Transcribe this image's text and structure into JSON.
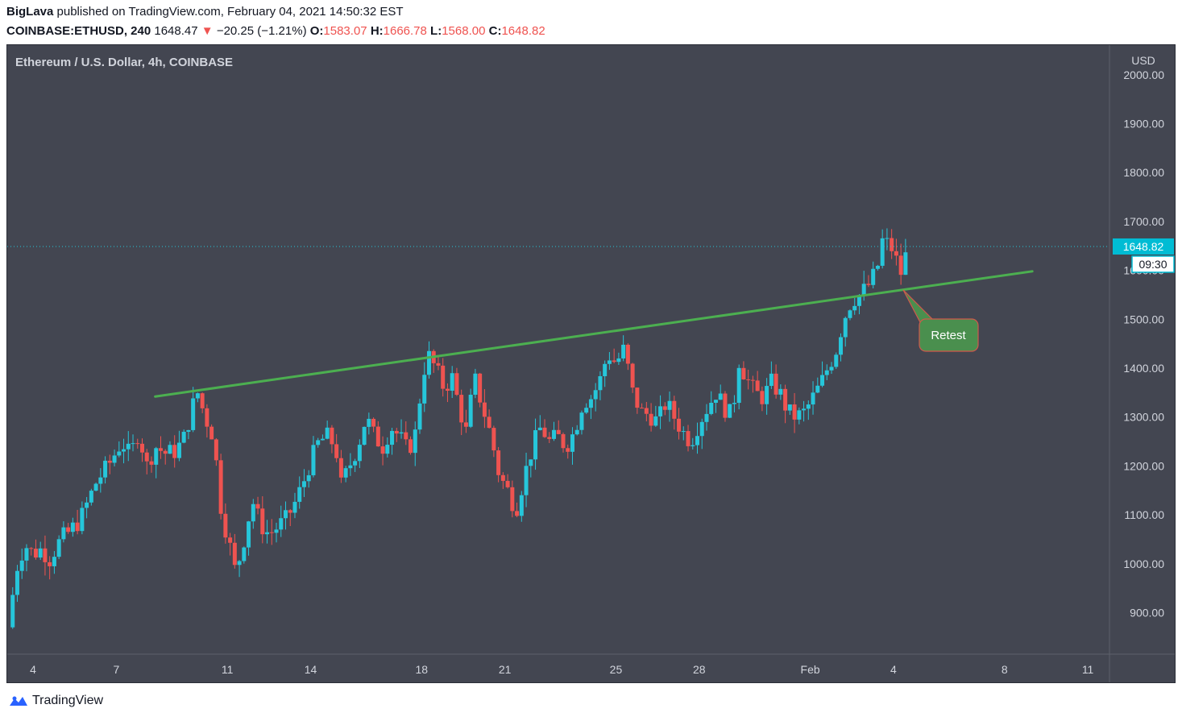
{
  "header": {
    "author": "BigLava",
    "published_text": "published on TradingView.com, February 04, 2021 14:50:32 EST",
    "symbol": "COINBASE:ETHUSD, 240",
    "last": "1648.47",
    "change_arrow": "▼",
    "change": "−20.25 (−1.21%)",
    "o_label": "O:",
    "o_value": "1583.07",
    "h_label": "H:",
    "h_value": "1666.78",
    "l_label": "L:",
    "l_value": "1568.00",
    "c_label": "C:",
    "c_value": "1648.82"
  },
  "chart_title": "Ethereum / U.S. Dollar, 4h, COINBASE",
  "currency_label": "USD",
  "price_tag": "1648.82",
  "countdown_tag": "09:30",
  "annotation_label": "Retest",
  "footer_brand": "TradingView",
  "colors": {
    "background": "#434651",
    "up": "#26c6da",
    "down": "#ef5350",
    "trendline": "#4caf50",
    "annotation_bg": "#4a8f4e",
    "price_tag": "#00bcd4"
  },
  "chart_data": {
    "type": "candlestick",
    "title": "Ethereum / U.S. Dollar, 4h, COINBASE",
    "x_tick_labels": [
      {
        "label": "4",
        "day": 4
      },
      {
        "label": "7",
        "day": 7
      },
      {
        "label": "11",
        "day": 11
      },
      {
        "label": "14",
        "day": 14
      },
      {
        "label": "18",
        "day": 18
      },
      {
        "label": "21",
        "day": 21
      },
      {
        "label": "25",
        "day": 25
      },
      {
        "label": "28",
        "day": 28
      },
      {
        "label": "Feb",
        "day": 32
      },
      {
        "label": "4",
        "day": 35
      },
      {
        "label": "8",
        "day": 39
      },
      {
        "label": "11",
        "day": 42
      }
    ],
    "y_ticks": [
      "900.00",
      "1000.00",
      "1100.00",
      "1200.00",
      "1300.00",
      "1400.00",
      "1500.00",
      "1600.00",
      "1700.00",
      "1800.00",
      "1900.00",
      "2000.00"
    ],
    "ylim": [
      820,
      2020
    ],
    "last_price": 1648.82,
    "x_unit": "days since Jan 1, 2021",
    "path_points": [
      [
        3.1,
        870
      ],
      [
        3.4,
        990
      ],
      [
        3.7,
        1040
      ],
      [
        4.0,
        1020
      ],
      [
        4.3,
        1030
      ],
      [
        4.6,
        1010
      ],
      [
        5.0,
        1050
      ],
      [
        5.3,
        1065
      ],
      [
        5.7,
        1090
      ],
      [
        6.0,
        1130
      ],
      [
        6.3,
        1170
      ],
      [
        6.7,
        1200
      ],
      [
        7.0,
        1230
      ],
      [
        7.2,
        1250
      ],
      [
        7.5,
        1220
      ],
      [
        7.8,
        1270
      ],
      [
        8.1,
        1200
      ],
      [
        8.4,
        1240
      ],
      [
        8.8,
        1225
      ],
      [
        9.1,
        1230
      ],
      [
        9.4,
        1250
      ],
      [
        9.7,
        1310
      ],
      [
        9.9,
        1355
      ],
      [
        10.2,
        1300
      ],
      [
        10.5,
        1260
      ],
      [
        10.8,
        1100
      ],
      [
        11.0,
        1060
      ],
      [
        11.3,
        980
      ],
      [
        11.6,
        1050
      ],
      [
        11.9,
        1130
      ],
      [
        12.2,
        1080
      ],
      [
        12.5,
        1060
      ],
      [
        12.8,
        1075
      ],
      [
        13.1,
        1090
      ],
      [
        13.4,
        1120
      ],
      [
        13.7,
        1160
      ],
      [
        14.0,
        1210
      ],
      [
        14.3,
        1250
      ],
      [
        14.6,
        1260
      ],
      [
        14.9,
        1240
      ],
      [
        15.1,
        1160
      ],
      [
        15.4,
        1200
      ],
      [
        15.7,
        1240
      ],
      [
        16.0,
        1300
      ],
      [
        16.3,
        1260
      ],
      [
        16.6,
        1240
      ],
      [
        16.9,
        1280
      ],
      [
        17.2,
        1260
      ],
      [
        17.5,
        1230
      ],
      [
        17.8,
        1270
      ],
      [
        18.0,
        1370
      ],
      [
        18.2,
        1430
      ],
      [
        18.5,
        1400
      ],
      [
        18.8,
        1360
      ],
      [
        19.1,
        1380
      ],
      [
        19.4,
        1310
      ],
      [
        19.6,
        1270
      ],
      [
        19.9,
        1380
      ],
      [
        20.2,
        1320
      ],
      [
        20.5,
        1260
      ],
      [
        20.8,
        1180
      ],
      [
        21.1,
        1150
      ],
      [
        21.4,
        1110
      ],
      [
        21.7,
        1180
      ],
      [
        22.0,
        1240
      ],
      [
        22.3,
        1280
      ],
      [
        22.6,
        1250
      ],
      [
        22.9,
        1260
      ],
      [
        23.2,
        1240
      ],
      [
        23.5,
        1270
      ],
      [
        23.8,
        1330
      ],
      [
        24.1,
        1340
      ],
      [
        24.4,
        1370
      ],
      [
        24.7,
        1430
      ],
      [
        25.0,
        1410
      ],
      [
        25.3,
        1440
      ],
      [
        25.6,
        1350
      ],
      [
        25.9,
        1310
      ],
      [
        26.2,
        1305
      ],
      [
        26.5,
        1290
      ],
      [
        26.8,
        1330
      ],
      [
        27.1,
        1300
      ],
      [
        27.4,
        1270
      ],
      [
        27.7,
        1250
      ],
      [
        28.0,
        1290
      ],
      [
        28.3,
        1320
      ],
      [
        28.6,
        1350
      ],
      [
        28.9,
        1320
      ],
      [
        29.2,
        1300
      ],
      [
        29.4,
        1420
      ],
      [
        29.7,
        1380
      ],
      [
        30.0,
        1350
      ],
      [
        30.3,
        1340
      ],
      [
        30.6,
        1370
      ],
      [
        30.9,
        1350
      ],
      [
        31.2,
        1310
      ],
      [
        31.5,
        1300
      ],
      [
        31.8,
        1310
      ],
      [
        32.1,
        1340
      ],
      [
        32.4,
        1370
      ],
      [
        32.7,
        1410
      ],
      [
        32.9,
        1430
      ],
      [
        33.2,
        1500
      ],
      [
        33.5,
        1540
      ],
      [
        33.8,
        1550
      ],
      [
        34.1,
        1570
      ],
      [
        34.4,
        1600
      ],
      [
        34.6,
        1660
      ],
      [
        34.9,
        1650
      ],
      [
        35.1,
        1620
      ],
      [
        35.3,
        1590
      ],
      [
        35.5,
        1648
      ]
    ],
    "trendline": {
      "start": [
        8.4,
        1342
      ],
      "end": [
        40.0,
        1598
      ]
    },
    "annotation": {
      "text": "Retest",
      "target": [
        35.35,
        1560
      ]
    }
  }
}
